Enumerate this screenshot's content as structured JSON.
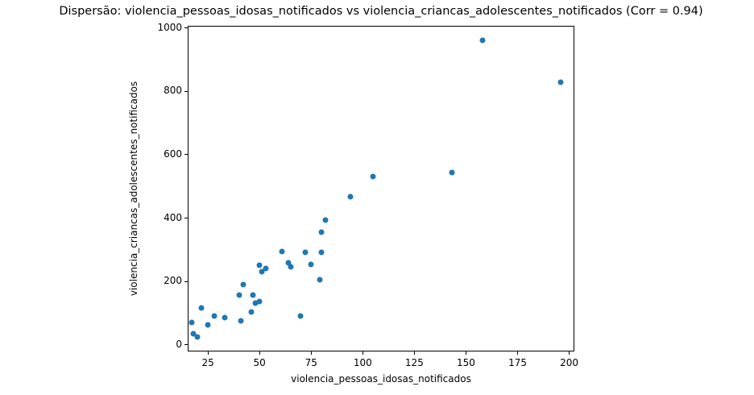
{
  "chart_data": {
    "type": "scatter",
    "title": "Dispersão: violencia_pessoas_idosas_notificados vs violencia_criancas_adolescentes_notificados (Corr = 0.94)",
    "xlabel": "violencia_pessoas_idosas_notificados",
    "ylabel": "violencia_criancas_adolescentes_notificados",
    "correlation": 0.94,
    "x_ticks": [
      25,
      50,
      75,
      100,
      125,
      150,
      175,
      200
    ],
    "y_ticks": [
      0,
      200,
      400,
      600,
      800,
      1000
    ],
    "xlim": [
      15.2,
      202.5
    ],
    "ylim": [
      -21,
      1007
    ],
    "grid": false,
    "legend_position": "none",
    "marker_color": "#1f77b4",
    "spine_color": "#000000",
    "text_color": "#000000",
    "background_color": "#ffffff",
    "points": [
      [
        17,
        70
      ],
      [
        18,
        35
      ],
      [
        20,
        26
      ],
      [
        22,
        117
      ],
      [
        25,
        64
      ],
      [
        28,
        90
      ],
      [
        33,
        85
      ],
      [
        40,
        156
      ],
      [
        41,
        75
      ],
      [
        42,
        190
      ],
      [
        46,
        103
      ],
      [
        47,
        156
      ],
      [
        48,
        131
      ],
      [
        50,
        138
      ],
      [
        50,
        251
      ],
      [
        51,
        231
      ],
      [
        53,
        242
      ],
      [
        61,
        295
      ],
      [
        64,
        258
      ],
      [
        65,
        247
      ],
      [
        70,
        92
      ],
      [
        72,
        292
      ],
      [
        75,
        255
      ],
      [
        79,
        205
      ],
      [
        80,
        293
      ],
      [
        80,
        356
      ],
      [
        82,
        393
      ],
      [
        94,
        468
      ],
      [
        105,
        530
      ],
      [
        143,
        545
      ],
      [
        158,
        960
      ],
      [
        196,
        830
      ]
    ]
  }
}
